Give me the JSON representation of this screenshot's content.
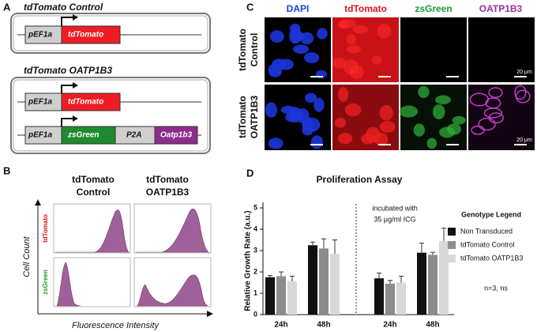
{
  "panel_a": {
    "label": "A",
    "construct_1": {
      "title": "tdTomato Control",
      "promoter": "pEF1a",
      "gene": "tdTomato"
    },
    "construct_2": {
      "title": "tdTomato OATP1B3",
      "promoter_1": "pEF1a",
      "gene_1": "tdTomato",
      "promoter_2": "pEF1a",
      "gene_2": "zsGreen",
      "linker": "P2A",
      "gene_3": "Oatp1b3"
    }
  },
  "panel_b": {
    "label": "B",
    "column_1": [
      "tdTomato",
      "Control"
    ],
    "column_2": [
      "tdTomato",
      "OATP1B3"
    ],
    "row_1": "tdTomato",
    "row_2": "zsGreen",
    "y_label": "Cell Count",
    "x_label": "Fluorescence Intensity"
  },
  "panel_c": {
    "label": "C",
    "columns": [
      "DAPI",
      "tdTomato",
      "zsGreen",
      "OATP1B3"
    ],
    "row_1": [
      "tdTomato",
      "Control"
    ],
    "row_2": [
      "tdTomato",
      "OATP1B3"
    ],
    "scale_bar_1": "20 μm",
    "scale_bar_2": "20 μm"
  },
  "panel_d": {
    "label": "D"
  },
  "chart_data": {
    "type": "bar",
    "title": "Proliferation Assay",
    "y_label": "Relative Growth Rate (a.u.)",
    "categories": [
      "24h",
      "48h",
      "24h",
      "48h"
    ],
    "series": [
      {
        "name": "Non Transduced",
        "color": "#111111",
        "values": [
          1.75,
          3.25,
          1.7,
          2.9
        ],
        "errors": [
          0.08,
          0.15,
          0.25,
          0.45
        ]
      },
      {
        "name": "tdTomato Control",
        "color": "#8c8c8c",
        "values": [
          1.8,
          3.1,
          1.45,
          2.8
        ],
        "errors": [
          0.2,
          0.45,
          0.15,
          0.12
        ]
      },
      {
        "name": "tdTomato OATP1B3",
        "color": "#d8d8d8",
        "values": [
          1.55,
          2.85,
          1.5,
          3.45
        ],
        "errors": [
          0.25,
          0.65,
          0.3,
          0.6
        ]
      }
    ],
    "ylim": [
      0,
      5
    ],
    "yticks": [
      0,
      1,
      2,
      3,
      4,
      5
    ],
    "legend_title": "Genotype Legend",
    "annotation": [
      "incubated with",
      "35 μg/ml ICG"
    ],
    "note": "n=3, ns"
  }
}
